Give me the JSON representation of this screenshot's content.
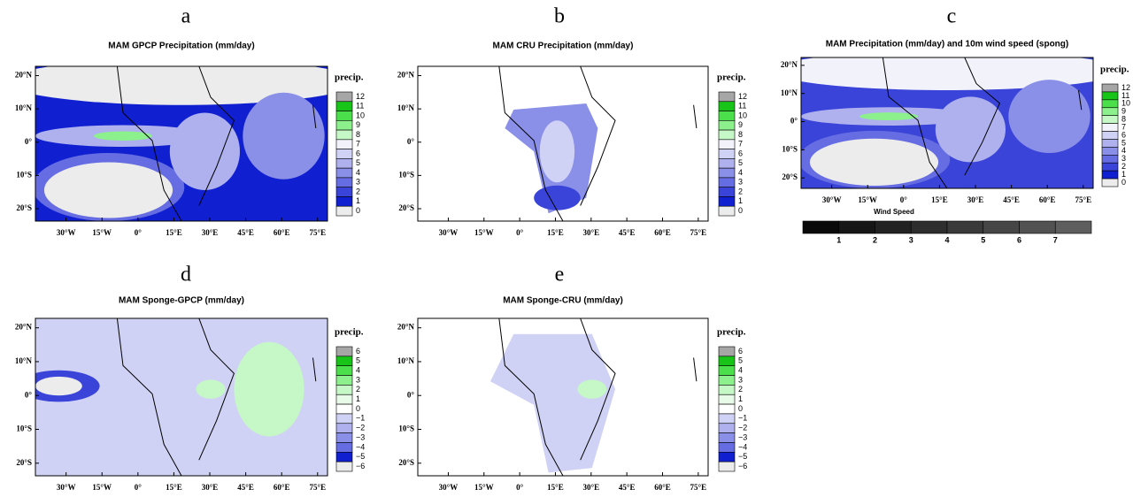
{
  "panels": [
    {
      "letter": "a",
      "title": "MAM GPCP Precipitation (mm/day)",
      "colorbar_label": "precip.",
      "colorbar_labels": [
        "12",
        "11",
        "10",
        "9",
        "8",
        "7",
        "6",
        "5",
        "4",
        "3",
        "2",
        "1",
        "0"
      ],
      "x_labels": [
        "30°W",
        "15°W",
        "0°",
        "15°E",
        "30°E",
        "45°E",
        "60°E",
        "75°E"
      ],
      "y_labels": [
        "20°N",
        "10°N",
        "0°",
        "10°S",
        "20°S"
      ]
    },
    {
      "letter": "b",
      "title": "MAM CRU Precipitation (mm/day)",
      "colorbar_label": "precip.",
      "colorbar_labels": [
        "12",
        "11",
        "10",
        "9",
        "8",
        "7",
        "6",
        "5",
        "4",
        "3",
        "2",
        "1",
        "0"
      ],
      "x_labels": [
        "30°W",
        "15°W",
        "0°",
        "15°E",
        "30°E",
        "45°E",
        "60°E",
        "75°E"
      ],
      "y_labels": [
        "20°N",
        "10°N",
        "0°",
        "10°S",
        "20°S"
      ]
    },
    {
      "letter": "c",
      "title": "MAM Precipitation (mm/day) and 10m wind speed (spong)",
      "colorbar_label": "precip.",
      "colorbar_labels": [
        "12",
        "11",
        "10",
        "9",
        "8",
        "7",
        "6",
        "5",
        "4",
        "3",
        "2",
        "1",
        "0"
      ],
      "x_labels": [
        "30°W",
        "15°W",
        "0°",
        "15°E",
        "30°E",
        "45°E",
        "60°E",
        "75°E"
      ],
      "y_labels": [
        "20°N",
        "10°N",
        "0°",
        "10°S",
        "20°S"
      ]
    },
    {
      "letter": "d",
      "title": "MAM Sponge-GPCP (mm/day)",
      "colorbar_label": "precip.",
      "colorbar_labels": [
        "6",
        "5",
        "4",
        "3",
        "2",
        "1",
        "0",
        "−1",
        "−2",
        "−3",
        "−4",
        "−5",
        "−6"
      ],
      "x_labels": [
        "30°W",
        "15°W",
        "0°",
        "15°E",
        "30°E",
        "45°E",
        "60°E",
        "75°E"
      ],
      "y_labels": [
        "20°N",
        "10°N",
        "0°",
        "10°S",
        "20°S"
      ]
    },
    {
      "letter": "e",
      "title": "MAM Sponge-CRU (mm/day)",
      "colorbar_label": "precip.",
      "colorbar_labels": [
        "6",
        "5",
        "4",
        "3",
        "2",
        "1",
        "0",
        "−1",
        "−2",
        "−3",
        "−4",
        "−5",
        "−6"
      ],
      "x_labels": [
        "30°W",
        "15°W",
        "0°",
        "15°E",
        "30°E",
        "45°E",
        "60°E",
        "75°E"
      ],
      "y_labels": [
        "20°N",
        "10°N",
        "0°",
        "10°S",
        "20°S"
      ]
    }
  ],
  "wind_bar": {
    "title": "Wind Speed",
    "labels": [
      1,
      2,
      3,
      4,
      5,
      6,
      7
    ]
  }
}
